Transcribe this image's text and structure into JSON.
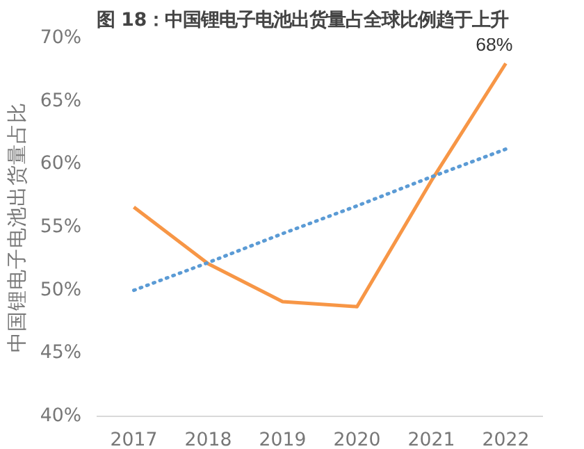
{
  "chart_data": {
    "type": "line",
    "title": "图 18：中国锂电子电池出货量占全球比例趋于上升",
    "ylabel": "中国锂电子电池出货量占比",
    "categories": [
      "2017",
      "2018",
      "2019",
      "2020",
      "2021",
      "2022"
    ],
    "series": [
      {
        "color": "#f79646",
        "values": [
          56.6,
          52.1,
          49.1,
          48.7,
          58.7,
          68
        ],
        "value_labels": [
          null,
          null,
          null,
          null,
          null,
          "68%"
        ]
      },
      {
        "type": "line",
        "line_style": "dotted",
        "color": "#5b9bd5",
        "values": [
          50,
          52.2,
          54.5,
          56.7,
          59,
          61.2
        ]
      }
    ],
    "ylim": [
      40,
      70
    ],
    "yticks": [
      {
        "value": 40,
        "label": "40%"
      },
      {
        "value": 45,
        "label": "45%"
      },
      {
        "value": 50,
        "label": "50%"
      },
      {
        "value": 55,
        "label": "55%"
      },
      {
        "value": 60,
        "label": "60%"
      },
      {
        "value": 65,
        "label": "65%"
      },
      {
        "value": 70,
        "label": "70%"
      }
    ],
    "grid": false
  }
}
